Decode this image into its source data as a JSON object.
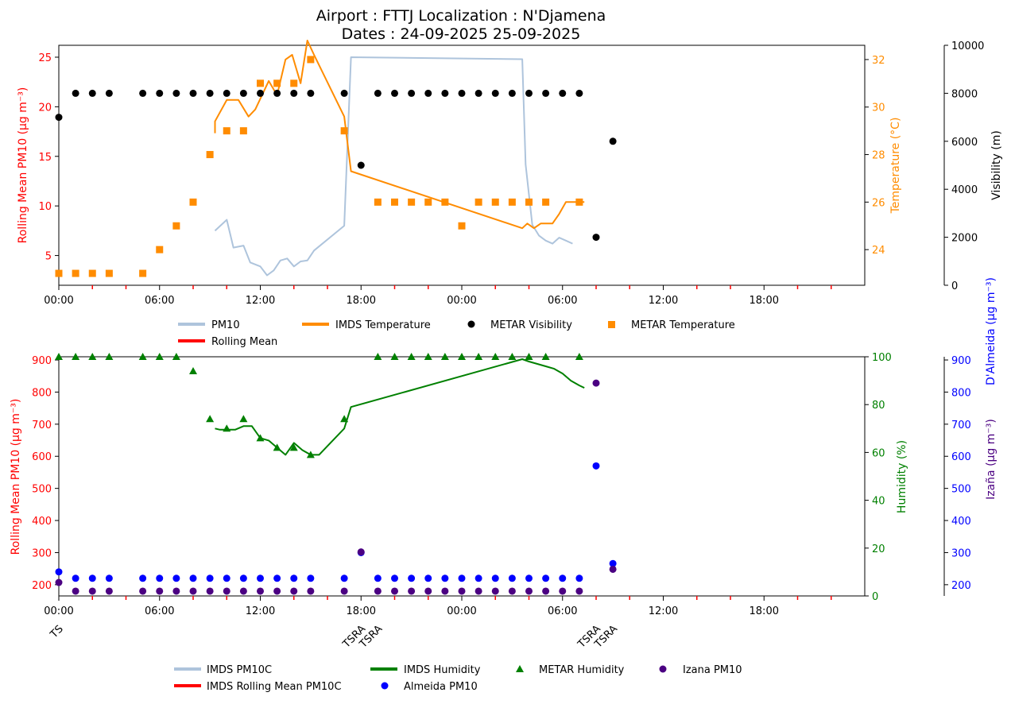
{
  "title_line1": "Airport : FTTJ  Localization : N'Djamena",
  "title_line2": "Dates : 24-09-2025 25-09-2025",
  "colors": {
    "pm10": "#aec4dc",
    "rolling": "#ff0000",
    "temperature": "#ff8c00",
    "visibility": "#000000",
    "humidity": "#008000",
    "almeida": "#0000ff",
    "izana": "#4b0082",
    "red_axis": "#ff0000"
  },
  "xaxis": {
    "range_hours": [
      0,
      48
    ],
    "tick_labels": [
      "00:00",
      "06:00",
      "12:00",
      "18:00",
      "00:00",
      "06:00",
      "12:00",
      "18:00"
    ],
    "weather_labels": [
      {
        "h": 0,
        "text": "TS"
      },
      {
        "h": 18,
        "text": "TSRA"
      },
      {
        "h": 19,
        "text": "TSRA"
      },
      {
        "h": 32,
        "text": "TSRA"
      },
      {
        "h": 33,
        "text": "TSRA"
      }
    ]
  },
  "top_axes": {
    "left_label": "Rolling Mean PM10 ($\\mu g\\ m^{-3}$)",
    "left_label_display": "Rolling Mean PM10 (μg m⁻³)",
    "left_ticks": [
      "5",
      "10",
      "15",
      "20",
      "25"
    ],
    "right1_label": "Temperature ($^o$C)",
    "right1_label_display": "Temperature (°C)",
    "right1_ticks": [
      "24",
      "26",
      "28",
      "30",
      "32"
    ],
    "right2_label": "Visibility (m)",
    "right2_ticks": [
      "0",
      "2000",
      "4000",
      "6000",
      "8000",
      "10000"
    ]
  },
  "bottom_axes": {
    "left_label": "Rolling Mean PM10 ($\\mu g\\ m^{-3}$)",
    "left_label_display": "Rolling Mean PM10 (μg m⁻³)",
    "left_ticks": [
      "200",
      "300",
      "400",
      "500",
      "600",
      "700",
      "800",
      "900"
    ],
    "right1_label": "Humidity (%)",
    "right1_ticks": [
      "0",
      "20",
      "40",
      "60",
      "80",
      "100"
    ],
    "right2_label_almeida": "D'Almeida ($\\mu g\\ m^{-3}$)",
    "right2_label_almeida_display": "D'Almeida (μg m⁻³)",
    "right2_label_izana": "Izaña ($\\mu g\\ m^{-3}$)",
    "right2_label_izana_display": "Izaña (μg m⁻³)",
    "right2_ticks": [
      "200",
      "300",
      "400",
      "500",
      "600",
      "700",
      "800",
      "900"
    ]
  },
  "legend_top": {
    "pm10": "PM10",
    "imds_temperature": "IMDS Temperature",
    "metar_visibility": "METAR Visibility",
    "metar_temperature": "METAR Temperature",
    "rolling_mean": "Rolling Mean"
  },
  "legend_bottom": {
    "imds_pm10c": "IMDS PM10C",
    "imds_humidity": "IMDS Humidity",
    "metar_humidity": "METAR Humidity",
    "izana_pm10": "Izana PM10",
    "imds_rolling": "IMDS Rolling Mean PM10C",
    "almeida_pm10": "Almeida PM10"
  },
  "chart_data": [
    {
      "type": "line",
      "title": "Airport : FTTJ  Localization : N'Djamena / Dates : 24-09-2025 25-09-2025",
      "x_unit": "hours since 24-09-2025 00:00",
      "series": [
        {
          "name": "PM10",
          "axis": "left",
          "ylim": [
            2,
            26.2
          ],
          "x": [
            9.3,
            10,
            10.4,
            11,
            11.4,
            12,
            12.4,
            12.8,
            13.2,
            13.6,
            14,
            14.4,
            14.8,
            15.2,
            17,
            17.4,
            27.6,
            27.8,
            28.2,
            28.6,
            29,
            29.4,
            29.8,
            30.2,
            30.6,
            31,
            31.4,
            31.8,
            32.1,
            32.4,
            33.1
          ],
          "y": [
            7.5,
            8.6,
            5.8,
            6.0,
            4.3,
            3.9,
            3.0,
            3.5,
            4.5,
            4.7,
            3.9,
            4.4,
            4.5,
            5.5,
            8.0,
            25.0,
            24.8,
            14.2,
            8.1,
            7.0,
            6.5,
            6.2,
            6.8,
            6.5,
            6.2,
            null,
            null,
            null,
            null,
            null,
            6.1
          ]
        },
        {
          "name": "IMDS Temperature",
          "axis": "right1",
          "ylim": [
            22.5,
            32.6
          ],
          "x": [
            9.3,
            9.3,
            10,
            10.7,
            11.3,
            11.7,
            12.5,
            13,
            13.5,
            13.9,
            14.4,
            14.8,
            15.2,
            17,
            17.4,
            27.6,
            27.9,
            28.3,
            28.7,
            29,
            29.4,
            29.8,
            30.2,
            30.6,
            31,
            31.3
          ],
          "y": [
            28.9,
            29.4,
            30.3,
            30.3,
            29.6,
            29.9,
            31.1,
            30.5,
            32.0,
            32.2,
            31.0,
            32.8,
            32.2,
            29.6,
            27.3,
            24.9,
            25.1,
            24.9,
            25.1,
            25.1,
            25.1,
            25.5,
            26.0,
            26.0,
            26.0,
            26.0
          ]
        },
        {
          "name": "METAR Visibility",
          "axis": "right2",
          "ylim": [
            0,
            10000
          ],
          "x": [
            0,
            1,
            2,
            3,
            5,
            6,
            7,
            8,
            9,
            10,
            11,
            12,
            13,
            14,
            15,
            17,
            18,
            19,
            20,
            21,
            22,
            23,
            24,
            25,
            26,
            27,
            28,
            29,
            30,
            31,
            32,
            33
          ],
          "y": [
            7000,
            8000,
            8000,
            8000,
            8000,
            8000,
            8000,
            8000,
            8000,
            8000,
            8000,
            8000,
            8000,
            8000,
            8000,
            8000,
            5000,
            8000,
            8000,
            8000,
            8000,
            8000,
            8000,
            8000,
            8000,
            8000,
            8000,
            8000,
            8000,
            8000,
            2000,
            6000
          ]
        },
        {
          "name": "METAR Temperature",
          "axis": "right1",
          "ylim": [
            22.5,
            32.6
          ],
          "x": [
            0,
            1,
            2,
            3,
            5,
            6,
            7,
            8,
            9,
            10,
            11,
            12,
            13,
            14,
            15,
            17,
            19,
            20,
            21,
            22,
            23,
            24,
            25,
            26,
            27,
            28,
            29,
            31
          ],
          "y": [
            23,
            23,
            23,
            23,
            23,
            24,
            25,
            26,
            28,
            29,
            29,
            31,
            31,
            31,
            32,
            29,
            26,
            26,
            26,
            26,
            26,
            25,
            26,
            26,
            26,
            26,
            26,
            26
          ]
        }
      ]
    },
    {
      "type": "line",
      "title": "",
      "x_unit": "hours since 24-09-2025 00:00",
      "series": [
        {
          "name": "IMDS Humidity",
          "axis": "right1",
          "ylim": [
            0,
            100
          ],
          "x": [
            9.3,
            9.6,
            10,
            10.5,
            11,
            11.5,
            12,
            12.5,
            13,
            13.5,
            14,
            14.5,
            15,
            15.5,
            17,
            17.4,
            27.6,
            28,
            28.5,
            29,
            29.5,
            30,
            30.5,
            31,
            31.3
          ],
          "y": [
            70,
            69.5,
            69.5,
            69.5,
            71,
            71,
            66,
            65,
            62,
            59,
            64,
            61,
            59,
            59,
            70,
            79,
            99,
            98,
            97,
            96,
            95,
            93,
            90,
            88,
            87
          ]
        },
        {
          "name": "METAR Humidity",
          "axis": "right1",
          "ylim": [
            0,
            100
          ],
          "x": [
            0,
            1,
            2,
            3,
            5,
            6,
            7,
            8,
            9,
            10,
            11,
            12,
            13,
            14,
            15,
            17,
            19,
            20,
            21,
            22,
            23,
            24,
            25,
            26,
            27,
            28,
            29,
            31
          ],
          "y": [
            100,
            100,
            100,
            100,
            100,
            100,
            100,
            94,
            74,
            70,
            74,
            66,
            62,
            62,
            59,
            74,
            100,
            100,
            100,
            100,
            100,
            100,
            100,
            100,
            100,
            100,
            100,
            100
          ]
        },
        {
          "name": "Almeida PM10",
          "axis": "right2",
          "ylim": [
            165,
            910
          ],
          "x": [
            0,
            1,
            2,
            3,
            5,
            6,
            7,
            8,
            9,
            10,
            11,
            12,
            13,
            14,
            15,
            17,
            18,
            19,
            20,
            21,
            22,
            23,
            24,
            25,
            26,
            27,
            28,
            29,
            30,
            31,
            32,
            33
          ],
          "y": [
            240,
            220,
            220,
            220,
            220,
            220,
            220,
            220,
            220,
            220,
            220,
            220,
            220,
            220,
            220,
            220,
            300,
            220,
            220,
            220,
            220,
            220,
            220,
            220,
            220,
            220,
            220,
            220,
            220,
            220,
            570,
            266
          ]
        },
        {
          "name": "Izana PM10",
          "axis": "right2",
          "ylim": [
            165,
            910
          ],
          "x": [
            0,
            1,
            2,
            3,
            5,
            6,
            7,
            8,
            9,
            10,
            11,
            12,
            13,
            14,
            15,
            17,
            18,
            19,
            20,
            21,
            22,
            23,
            24,
            25,
            26,
            27,
            28,
            29,
            30,
            31,
            32,
            33
          ],
          "y": [
            207,
            180,
            180,
            180,
            180,
            180,
            180,
            180,
            180,
            180,
            180,
            180,
            180,
            180,
            180,
            180,
            302,
            180,
            180,
            180,
            180,
            180,
            180,
            180,
            180,
            180,
            180,
            180,
            180,
            180,
            828,
            248
          ]
        }
      ]
    }
  ]
}
